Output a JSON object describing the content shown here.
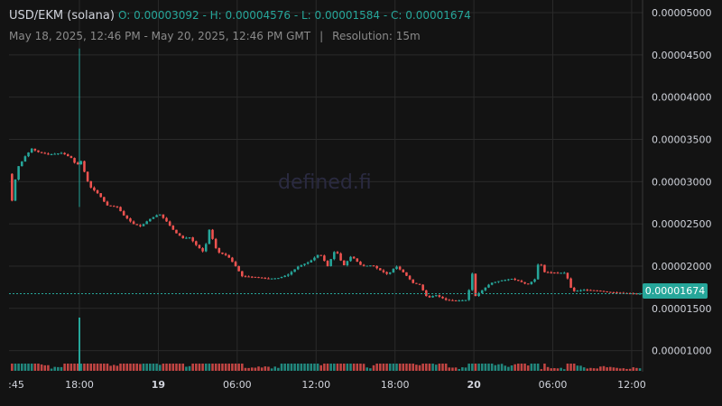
{
  "header": {
    "symbol": "USD/EKM (solana)",
    "ohlc": "O: 0.00003092 - H: 0.00004576 - L: 0.00001584 - C: 0.00001674",
    "range": "May 18, 2025, 12:46 PM - May 20, 2025, 12:46 PM GMT",
    "resolution": "Resolution: 15m"
  },
  "watermark": "defined.fi",
  "last_price_label": "0.00001674",
  "colors": {
    "up": "#26a69a",
    "down": "#ef5350",
    "background": "#131313",
    "grid": "#2a2a2a"
  },
  "chart_data": {
    "type": "candlestick",
    "y_axis": {
      "ticks": [
        "0.00005000",
        "0.00004500",
        "0.00004000",
        "0.00003500",
        "0.00003000",
        "0.00002500",
        "0.00002000",
        "0.00001500",
        "0.00001000"
      ],
      "ylim": [
        7.5e-06,
        5.15e-05
      ]
    },
    "x_axis": {
      "ticks": [
        {
          "label": ":45",
          "bold": false,
          "hour": 0
        },
        {
          "label": "18:00",
          "bold": false,
          "hour": 18
        },
        {
          "label": "19",
          "bold": true,
          "hour": 24
        },
        {
          "label": "06:00",
          "bold": false,
          "hour": 30
        },
        {
          "label": "12:00",
          "bold": false,
          "hour": 36
        },
        {
          "label": "18:00",
          "bold": false,
          "hour": 42
        },
        {
          "label": "20",
          "bold": true,
          "hour": 48
        },
        {
          "label": "06:00",
          "bold": false,
          "hour": 54
        },
        {
          "label": "12:00",
          "bold": false,
          "hour": 60
        }
      ]
    },
    "last_price": 1.674e-05,
    "candles_hour_start": 12.75,
    "candle_interval_hours": 0.25,
    "close_path": [
      [
        12.75,
        3.092e-05
      ],
      [
        12.9,
        2.9e-05
      ],
      [
        13.1,
        2.65e-05
      ],
      [
        13.3,
        3.15e-05
      ],
      [
        13.6,
        3.2e-05
      ],
      [
        14.0,
        3.3e-05
      ],
      [
        14.5,
        3.39e-05
      ],
      [
        15.0,
        3.35e-05
      ],
      [
        15.8,
        3.32e-05
      ],
      [
        16.8,
        3.34e-05
      ],
      [
        17.5,
        3.28e-05
      ],
      [
        17.9,
        3.19e-05
      ],
      [
        18.3,
        3.25e-05
      ],
      [
        18.6,
        3.05e-05
      ],
      [
        19.0,
        2.93e-05
      ],
      [
        19.6,
        2.85e-05
      ],
      [
        20.2,
        2.72e-05
      ],
      [
        21.0,
        2.7e-05
      ],
      [
        21.5,
        2.6e-05
      ],
      [
        22.2,
        2.5e-05
      ],
      [
        22.8,
        2.47e-05
      ],
      [
        23.4,
        2.55e-05
      ],
      [
        24.2,
        2.62e-05
      ],
      [
        24.8,
        2.52e-05
      ],
      [
        25.4,
        2.4e-05
      ],
      [
        26.0,
        2.33e-05
      ],
      [
        26.5,
        2.34e-05
      ],
      [
        27.0,
        2.25e-05
      ],
      [
        27.6,
        2.16e-05
      ],
      [
        28.0,
        2.43e-05
      ],
      [
        28.6,
        2.17e-05
      ],
      [
        29.4,
        2.12e-05
      ],
      [
        30.0,
        2e-05
      ],
      [
        30.5,
        1.88e-05
      ],
      [
        31.5,
        1.87e-05
      ],
      [
        32.5,
        1.85e-05
      ],
      [
        33.3,
        1.86e-05
      ],
      [
        34.0,
        1.9e-05
      ],
      [
        34.8,
        2e-05
      ],
      [
        35.6,
        2.05e-05
      ],
      [
        36.4,
        2.15e-05
      ],
      [
        37.0,
        2e-05
      ],
      [
        37.6,
        2.2e-05
      ],
      [
        38.2,
        2e-05
      ],
      [
        38.8,
        2.12e-05
      ],
      [
        39.6,
        2e-05
      ],
      [
        40.4,
        2.01e-05
      ],
      [
        41.0,
        1.95e-05
      ],
      [
        41.6,
        1.9e-05
      ],
      [
        42.2,
        2e-05
      ],
      [
        42.8,
        1.92e-05
      ],
      [
        43.5,
        1.8e-05
      ],
      [
        44.0,
        1.78e-05
      ],
      [
        44.6,
        1.62e-05
      ],
      [
        45.2,
        1.66e-05
      ],
      [
        46.0,
        1.6e-05
      ],
      [
        46.8,
        1.59e-05
      ],
      [
        47.6,
        1.6e-05
      ],
      [
        48.0,
        1.91e-05
      ],
      [
        48.2,
        1.64e-05
      ],
      [
        48.8,
        1.72e-05
      ],
      [
        49.4,
        1.8e-05
      ],
      [
        50.2,
        1.83e-05
      ],
      [
        51.0,
        1.85e-05
      ],
      [
        51.6,
        1.82e-05
      ],
      [
        52.2,
        1.78e-05
      ],
      [
        52.8,
        1.85e-05
      ],
      [
        53.1,
        2.1e-05
      ],
      [
        53.4,
        1.93e-05
      ],
      [
        54.4,
        1.92e-05
      ],
      [
        55.1,
        1.92e-05
      ],
      [
        55.6,
        1.7e-05
      ],
      [
        56.5,
        1.72e-05
      ],
      [
        57.5,
        1.71e-05
      ],
      [
        58.5,
        1.69e-05
      ],
      [
        59.5,
        1.68e-05
      ],
      [
        60.5,
        1.674e-05
      ]
    ],
    "spikes": [
      {
        "hour": 18.0,
        "high": 4.576e-05,
        "low": 2.7e-05
      }
    ]
  }
}
